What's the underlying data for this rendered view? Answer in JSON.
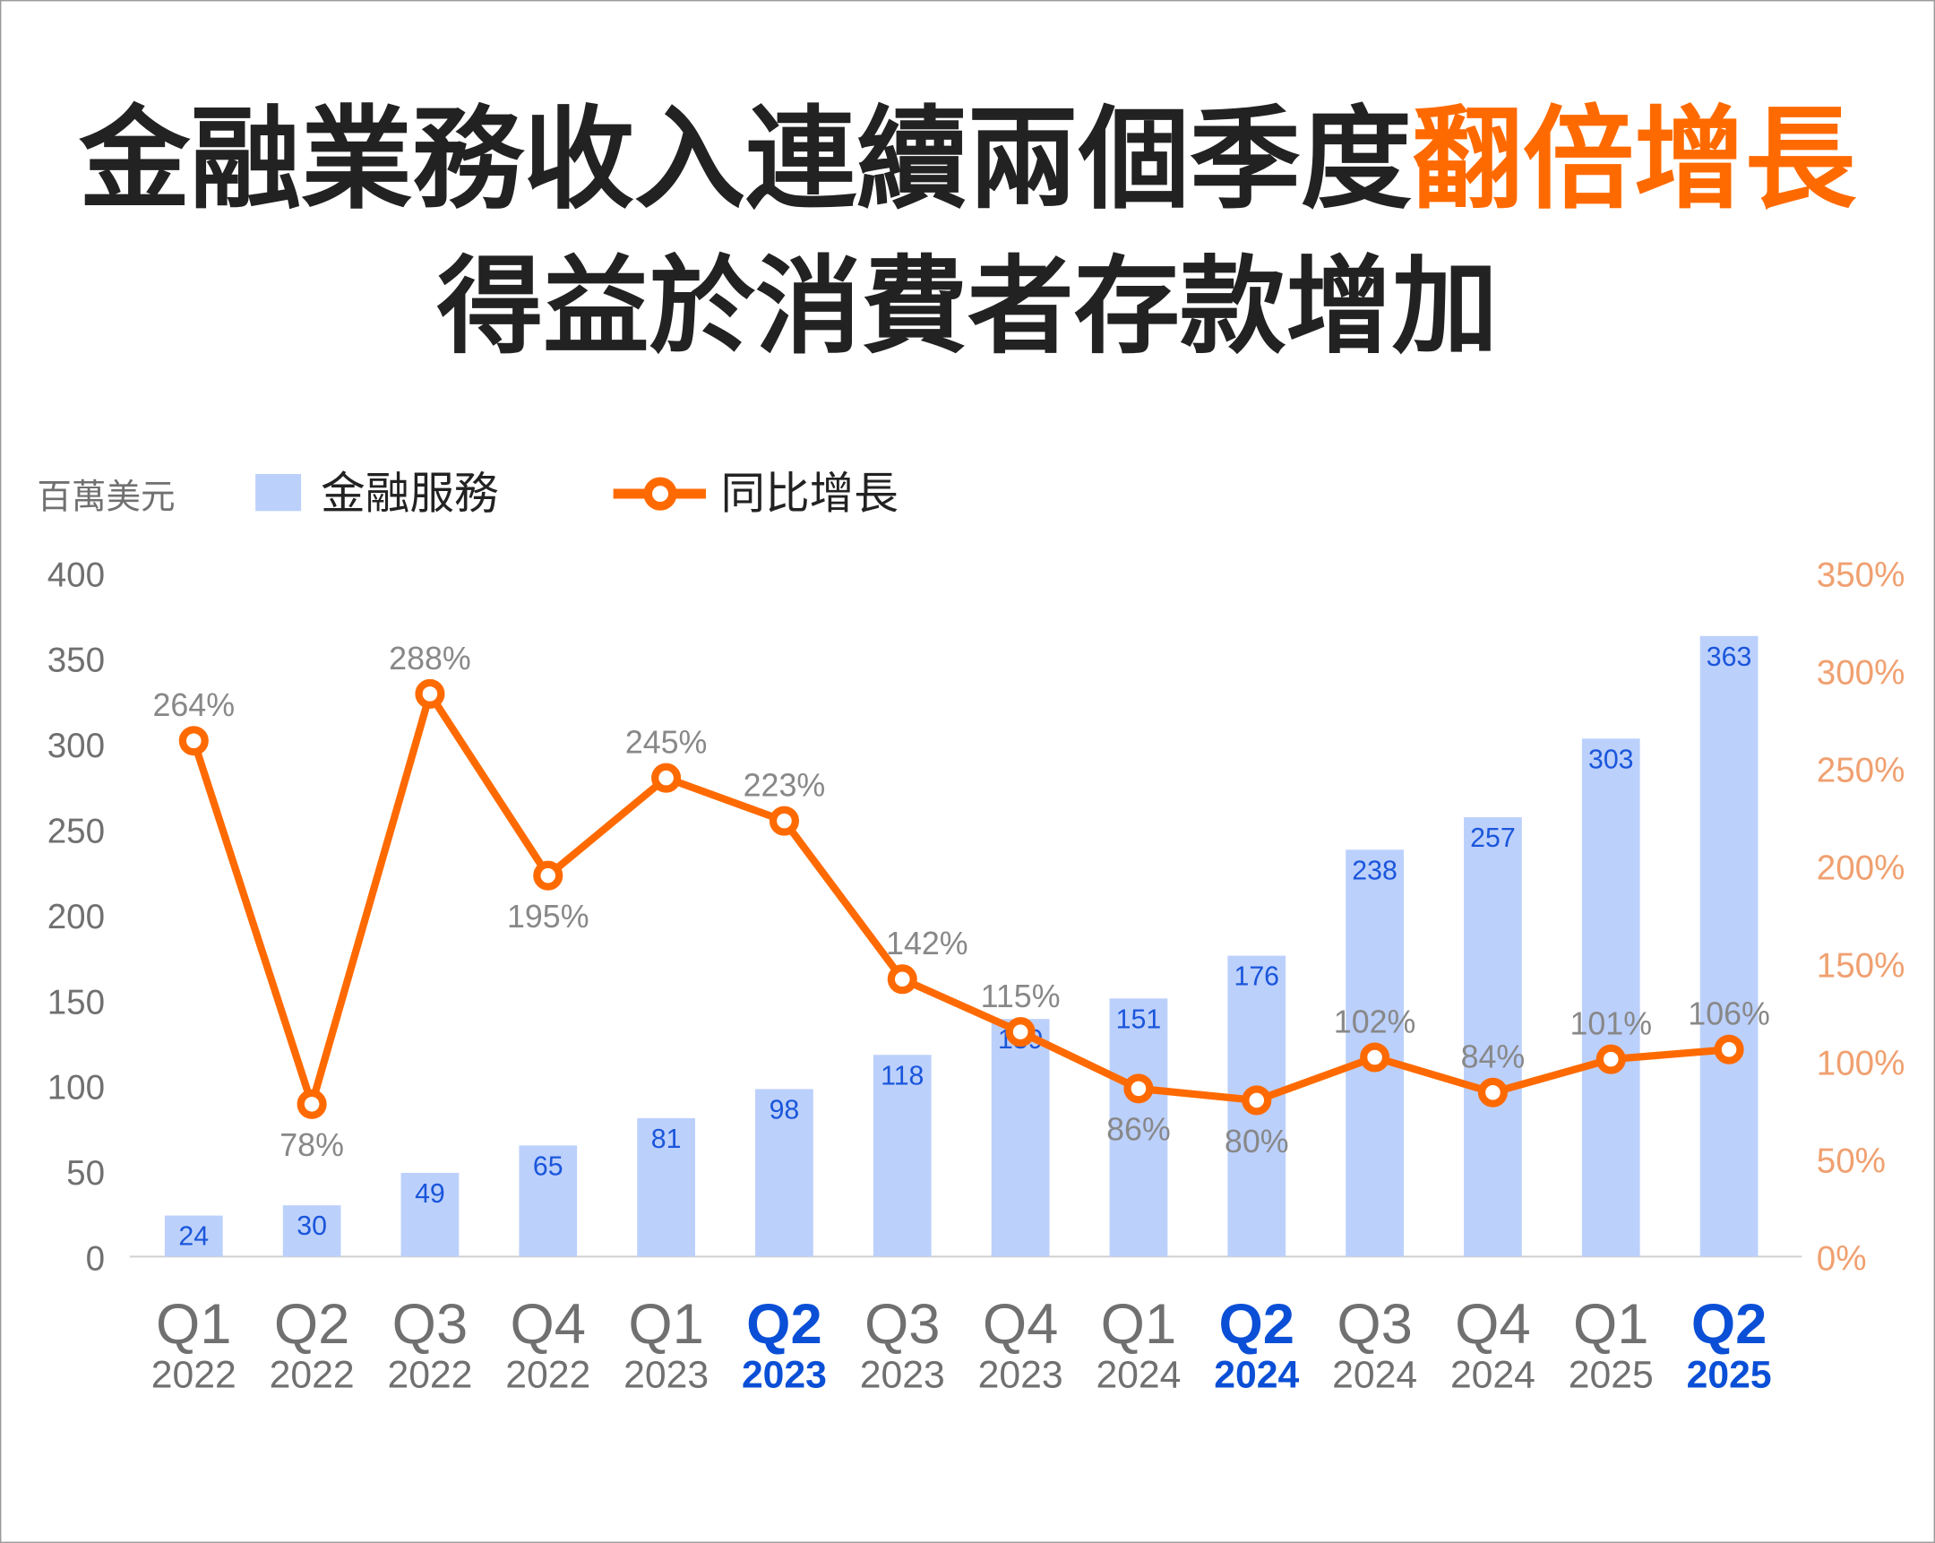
{
  "title": {
    "line1_prefix": "金融業務收入連續兩個季度",
    "line1_highlight": "翻倍增長",
    "line2": "得益於消費者存款增加"
  },
  "colors": {
    "bar": "#bcd0fc",
    "bar_label": "#1a56db",
    "line": "#ff6a00",
    "highlight_text": "#ff6a00",
    "right_axis": "#f0a070",
    "highlight_tick": "#0a4fd6",
    "tick": "#707070"
  },
  "chart_data": {
    "type": "bar+line",
    "unit_label": "百萬美元",
    "legend": {
      "bar": "金融服務",
      "line": "同比增長",
      "placement": "top-left"
    },
    "categories": [
      {
        "q": "Q1",
        "y": "2022"
      },
      {
        "q": "Q2",
        "y": "2022"
      },
      {
        "q": "Q3",
        "y": "2022"
      },
      {
        "q": "Q4",
        "y": "2022"
      },
      {
        "q": "Q1",
        "y": "2023"
      },
      {
        "q": "Q2",
        "y": "2023",
        "highlight": true
      },
      {
        "q": "Q3",
        "y": "2023"
      },
      {
        "q": "Q4",
        "y": "2023"
      },
      {
        "q": "Q1",
        "y": "2024"
      },
      {
        "q": "Q2",
        "y": "2024",
        "highlight": true
      },
      {
        "q": "Q3",
        "y": "2024"
      },
      {
        "q": "Q4",
        "y": "2024"
      },
      {
        "q": "Q1",
        "y": "2025"
      },
      {
        "q": "Q2",
        "y": "2025",
        "highlight": true
      }
    ],
    "series": [
      {
        "name": "金融服務",
        "type": "bar",
        "axis": "left",
        "values": [
          24,
          30,
          49,
          65,
          81,
          98,
          118,
          139,
          151,
          176,
          238,
          257,
          303,
          363
        ]
      },
      {
        "name": "同比增長",
        "type": "line",
        "axis": "right",
        "values": [
          264,
          78,
          288,
          195,
          245,
          223,
          142,
          115,
          86,
          80,
          102,
          84,
          101,
          106
        ]
      }
    ],
    "left_axis": {
      "ylim": [
        0,
        400
      ],
      "ticks": [
        "0",
        "50",
        "100",
        "150",
        "200",
        "250",
        "300",
        "350",
        "400"
      ]
    },
    "right_axis": {
      "ylim": [
        0,
        350
      ],
      "ticks": [
        "0%",
        "50%",
        "100%",
        "150%",
        "200%",
        "250%",
        "300%",
        "350%"
      ]
    },
    "grid": false
  }
}
